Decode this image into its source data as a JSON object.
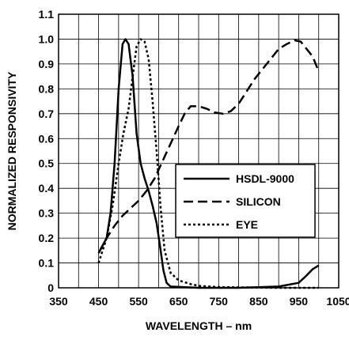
{
  "chart_data": {
    "type": "line",
    "xlabel": "WAVELENGTH – nm",
    "ylabel": "NORMALIZED RESPONSIVITY",
    "xlim": [
      350,
      1050
    ],
    "ylim": [
      0,
      1.1
    ],
    "x_ticks": [
      350,
      450,
      550,
      650,
      750,
      850,
      950,
      1050
    ],
    "y_ticks": [
      0,
      0.1,
      0.2,
      0.3,
      0.4,
      0.5,
      0.6,
      0.7,
      0.8,
      0.9,
      1.0,
      1.1
    ],
    "x_grid_step": 50,
    "y_grid_step": 0.1,
    "grid": true,
    "legend_position": "right-middle",
    "series": [
      {
        "name": "HSDL-9000",
        "style": "solid",
        "points": [
          [
            450,
            0.14
          ],
          [
            470,
            0.2
          ],
          [
            480,
            0.3
          ],
          [
            490,
            0.5
          ],
          [
            500,
            0.8
          ],
          [
            510,
            0.98
          ],
          [
            517,
            1.0
          ],
          [
            525,
            0.98
          ],
          [
            535,
            0.85
          ],
          [
            545,
            0.62
          ],
          [
            555,
            0.5
          ],
          [
            565,
            0.44
          ],
          [
            575,
            0.39
          ],
          [
            585,
            0.33
          ],
          [
            595,
            0.26
          ],
          [
            605,
            0.15
          ],
          [
            612,
            0.07
          ],
          [
            620,
            0.02
          ],
          [
            630,
            0.005
          ],
          [
            700,
            0.0
          ],
          [
            800,
            0.0
          ],
          [
            900,
            0.005
          ],
          [
            950,
            0.02
          ],
          [
            970,
            0.05
          ],
          [
            985,
            0.075
          ],
          [
            1000,
            0.09
          ]
        ]
      },
      {
        "name": "SILICON",
        "style": "dashed",
        "points": [
          [
            450,
            0.14
          ],
          [
            470,
            0.2
          ],
          [
            490,
            0.25
          ],
          [
            510,
            0.29
          ],
          [
            530,
            0.32
          ],
          [
            550,
            0.35
          ],
          [
            570,
            0.39
          ],
          [
            590,
            0.44
          ],
          [
            610,
            0.51
          ],
          [
            630,
            0.58
          ],
          [
            650,
            0.65
          ],
          [
            665,
            0.7
          ],
          [
            680,
            0.73
          ],
          [
            700,
            0.73
          ],
          [
            720,
            0.72
          ],
          [
            740,
            0.705
          ],
          [
            760,
            0.7
          ],
          [
            780,
            0.71
          ],
          [
            800,
            0.74
          ],
          [
            820,
            0.79
          ],
          [
            840,
            0.84
          ],
          [
            860,
            0.88
          ],
          [
            880,
            0.92
          ],
          [
            900,
            0.96
          ],
          [
            920,
            0.98
          ],
          [
            940,
            0.995
          ],
          [
            955,
            0.99
          ],
          [
            970,
            0.96
          ],
          [
            985,
            0.93
          ],
          [
            1000,
            0.87
          ]
        ]
      },
      {
        "name": "EYE",
        "style": "dotted",
        "points": [
          [
            450,
            0.1
          ],
          [
            470,
            0.2
          ],
          [
            485,
            0.33
          ],
          [
            500,
            0.5
          ],
          [
            512,
            0.62
          ],
          [
            525,
            0.72
          ],
          [
            535,
            0.85
          ],
          [
            545,
            0.97
          ],
          [
            555,
            1.0
          ],
          [
            565,
            0.99
          ],
          [
            575,
            0.92
          ],
          [
            585,
            0.75
          ],
          [
            595,
            0.55
          ],
          [
            605,
            0.32
          ],
          [
            615,
            0.15
          ],
          [
            630,
            0.06
          ],
          [
            650,
            0.03
          ],
          [
            680,
            0.015
          ],
          [
            700,
            0.008
          ],
          [
            750,
            0.003
          ],
          [
            800,
            0.002
          ],
          [
            900,
            0.0
          ],
          [
            1000,
            0.0
          ]
        ]
      }
    ]
  }
}
